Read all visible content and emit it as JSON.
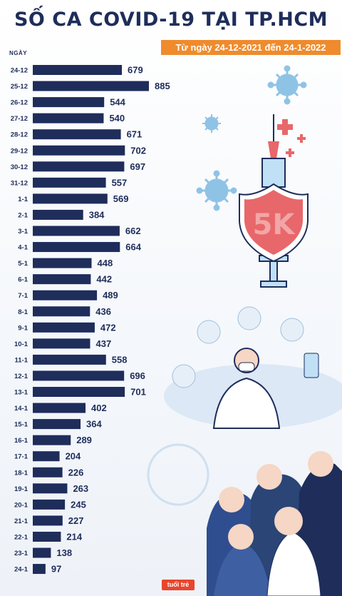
{
  "header": {
    "title": "SỐ CA COVID-19 TẠI TP.HCM",
    "subtitle": "Từ ngày 24-12-2021 đến 24-1-2022"
  },
  "logo_text": "tuổi trẻ",
  "colors": {
    "bar": "#1e2d5a",
    "title": "#1e2d5a",
    "subtitle_bg": "#ef8b2c",
    "shield": "#e8676a",
    "virus": "#8fc3e6"
  },
  "chart_data": {
    "type": "bar",
    "orientation": "horizontal",
    "xlabel": "",
    "ylabel": "NGÀY",
    "categories": [
      "24-12",
      "25-12",
      "26-12",
      "27-12",
      "28-12",
      "29-12",
      "30-12",
      "31-12",
      "1-1",
      "2-1",
      "3-1",
      "4-1",
      "5-1",
      "6-1",
      "7-1",
      "8-1",
      "9-1",
      "10-1",
      "11-1",
      "12-1",
      "13-1",
      "14-1",
      "15-1",
      "16-1",
      "17-1",
      "18-1",
      "19-1",
      "20-1",
      "21-1",
      "22-1",
      "23-1",
      "24-1"
    ],
    "values": [
      679,
      885,
      544,
      540,
      671,
      702,
      697,
      557,
      569,
      384,
      662,
      664,
      448,
      442,
      489,
      436,
      472,
      437,
      558,
      696,
      701,
      402,
      364,
      289,
      204,
      226,
      263,
      245,
      227,
      214,
      138,
      97
    ],
    "xlim": [
      0,
      885
    ],
    "grid": false,
    "legend": "none",
    "data_labels": true
  }
}
